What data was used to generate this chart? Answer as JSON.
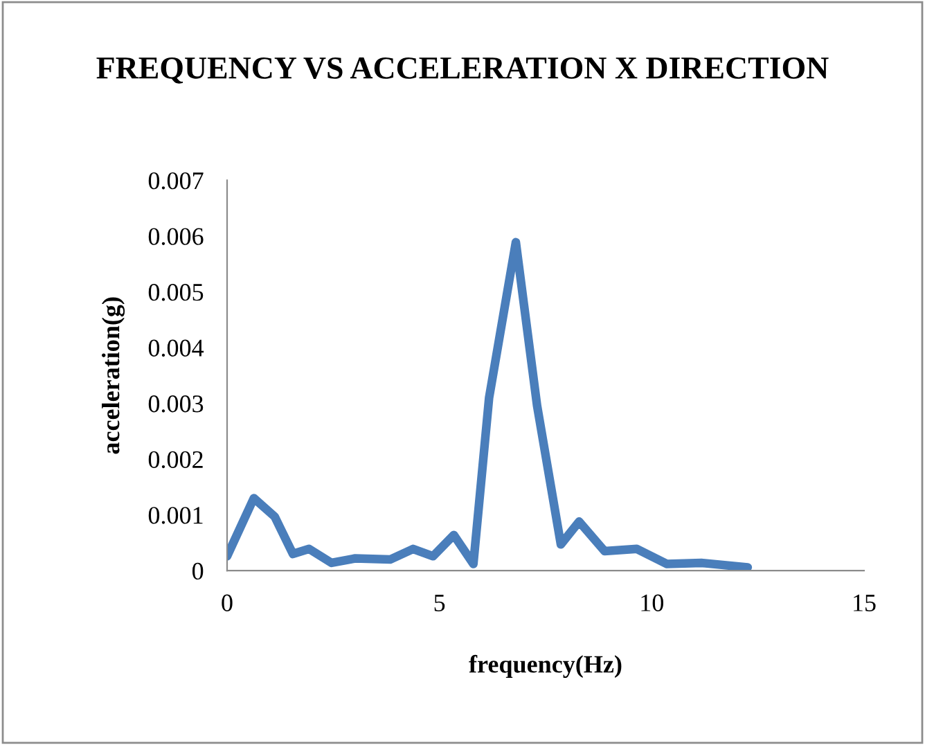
{
  "chart_data": {
    "type": "line",
    "title": "FREQUENCY VS ACCELERATION X DIRECTION",
    "xlabel": "frequency(Hz)",
    "ylabel": "acceleration(g)",
    "series": [
      {
        "color": "#4a7ebb",
        "x": [
          0.0,
          0.63,
          1.12,
          1.55,
          1.93,
          2.46,
          3.02,
          3.84,
          4.38,
          4.85,
          5.34,
          5.8,
          6.17,
          6.8,
          7.3,
          7.86,
          8.29,
          8.89,
          9.65,
          10.36,
          11.17,
          12.26
        ],
        "values": [
          0.00026,
          0.0013,
          0.00097,
          0.0003,
          0.00039,
          0.00014,
          0.00022,
          0.0002,
          0.00039,
          0.00026,
          0.00064,
          0.00012,
          0.0031,
          0.00589,
          0.00296,
          0.00047,
          0.00088,
          0.00035,
          0.00039,
          0.00012,
          0.00014,
          6e-05
        ]
      }
    ],
    "xlim": [
      0,
      15
    ],
    "xticks": [
      0,
      5,
      10,
      15
    ],
    "ylim": [
      0,
      0.007
    ],
    "yticks": [
      0,
      0.001,
      0.002,
      0.003,
      0.004,
      0.005,
      0.006,
      0.007
    ],
    "grid": false,
    "legend": false,
    "marker": "none",
    "line_style": "solid"
  }
}
